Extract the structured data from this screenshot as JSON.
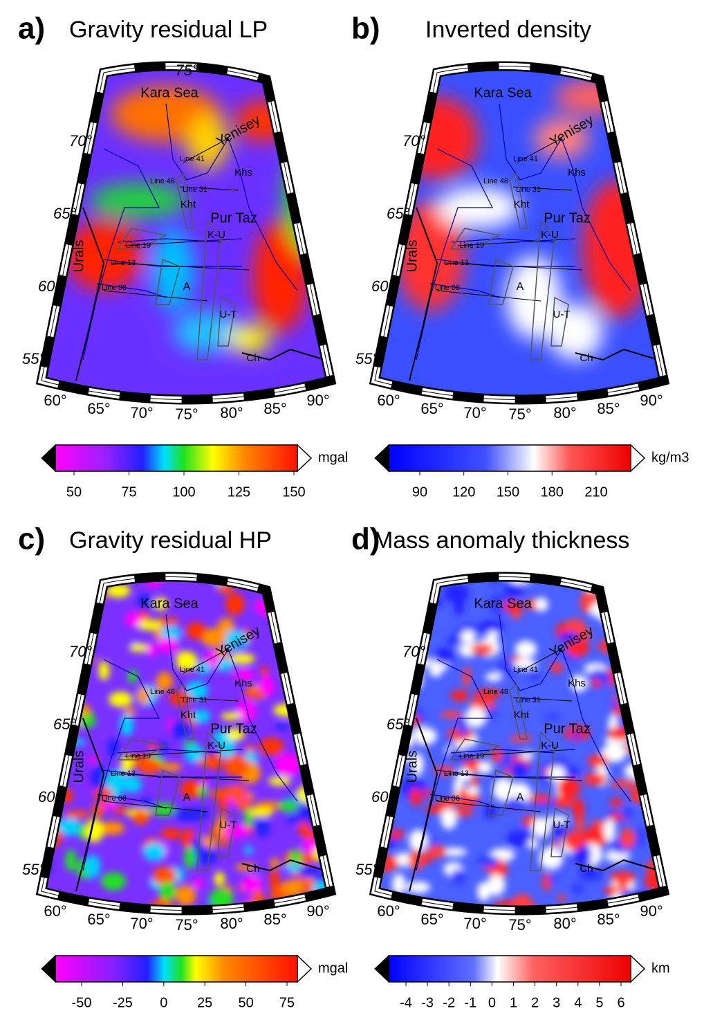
{
  "panels": [
    {
      "letter": "a)",
      "title": "Gravity residual LP",
      "lat_labels": [
        "75°",
        "70°",
        "65°",
        "60°",
        "55°"
      ],
      "lon_labels": [
        "60°",
        "65°",
        "70°",
        "75°",
        "80°",
        "85°",
        "90°"
      ],
      "map_labels": [
        "Kara Sea",
        "Yenisey",
        "Khs",
        "Kht",
        "Pur Taz",
        "K-U",
        "Urals",
        "A",
        "U-T",
        "Ch",
        "Line 41",
        "Line 48",
        "Line 31",
        "Line 19",
        "Line 13",
        "Line 06"
      ],
      "colorbar": {
        "ticks": [
          50,
          75,
          100,
          125,
          150
        ],
        "unit": "mgal"
      }
    },
    {
      "letter": "b)",
      "title": "Inverted density",
      "lat_labels": [
        "70°",
        "65°",
        "60°",
        "55°"
      ],
      "lon_labels": [
        "60°",
        "65°",
        "70°",
        "75°",
        "80°",
        "85°",
        "90°"
      ],
      "map_labels": [
        "Kara Sea",
        "Yenisey",
        "Khs",
        "Kht",
        "Pur Taz",
        "K-U",
        "Urals",
        "A",
        "U-T",
        "Ch",
        "Line 41",
        "Line 48",
        "Line 31",
        "Line 19",
        "Line 13",
        "Line 06"
      ],
      "colorbar": {
        "ticks": [
          90,
          120,
          150,
          180,
          210
        ],
        "unit": "kg/m3"
      }
    },
    {
      "letter": "c)",
      "title": "Gravity residual HP",
      "lat_labels": [
        "70°",
        "65°",
        "60°",
        "55°"
      ],
      "lon_labels": [
        "60°",
        "65°",
        "70°",
        "75°",
        "80°",
        "85°",
        "90°"
      ],
      "map_labels": [
        "Kara Sea",
        "Yenisey",
        "Khs",
        "Kht",
        "Pur Taz",
        "K-U",
        "Urals",
        "A",
        "U-T",
        "Ch",
        "Line 41",
        "Line 48",
        "Line 31",
        "Line 19",
        "Line 13",
        "Line 06"
      ],
      "colorbar": {
        "ticks": [
          -50,
          -25,
          0,
          25,
          50,
          75
        ],
        "unit": "mgal"
      }
    },
    {
      "letter": "d)",
      "title": "Mass anomaly thickness",
      "lat_labels": [
        "70°",
        "65°",
        "60°",
        "55°"
      ],
      "lon_labels": [
        "60°",
        "65°",
        "70°",
        "75°",
        "80°",
        "85°",
        "90°"
      ],
      "map_labels": [
        "Kara Sea",
        "Yenisey",
        "Khs",
        "Kht",
        "Pur Taz",
        "K-U",
        "Urals",
        "A",
        "U-T",
        "Ch",
        "Line 41",
        "Line 48",
        "Line 31",
        "Line 19",
        "Line 13",
        "Line 06"
      ],
      "colorbar": {
        "ticks": [
          -4,
          -3,
          -2,
          -1,
          0,
          1,
          2,
          3,
          4,
          5,
          6
        ],
        "unit": "km"
      }
    }
  ]
}
